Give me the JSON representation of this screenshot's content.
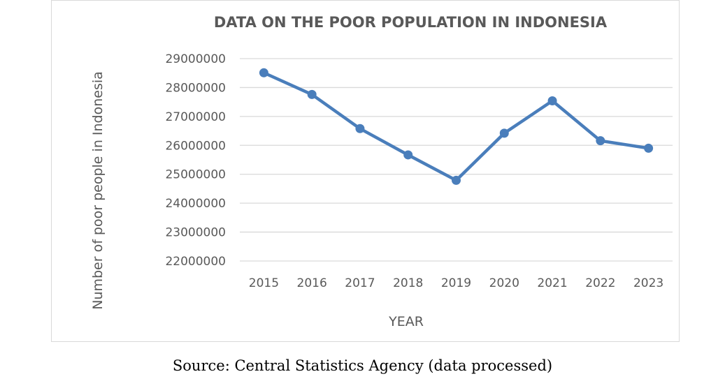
{
  "chart_data": {
    "type": "line",
    "title": "DATA ON THE POOR POPULATION IN INDONESIA",
    "xlabel": "YEAR",
    "ylabel": "Number of poor people in Indonesia",
    "categories": [
      "2015",
      "2016",
      "2017",
      "2018",
      "2019",
      "2020",
      "2021",
      "2022",
      "2023"
    ],
    "series": [
      {
        "values": [
          28510000,
          27760000,
          26580000,
          25670000,
          24790000,
          26420000,
          27540000,
          26160000,
          25900000
        ],
        "color": "#4a7ebb"
      }
    ],
    "yticks": [
      "29000000",
      "28000000",
      "27000000",
      "26000000",
      "25000000",
      "24000000",
      "23000000",
      "22000000"
    ],
    "ylim": [
      22000000,
      29000000
    ],
    "grid": true,
    "legend": "none"
  },
  "caption": "Source: Central Statistics Agency (data processed)"
}
